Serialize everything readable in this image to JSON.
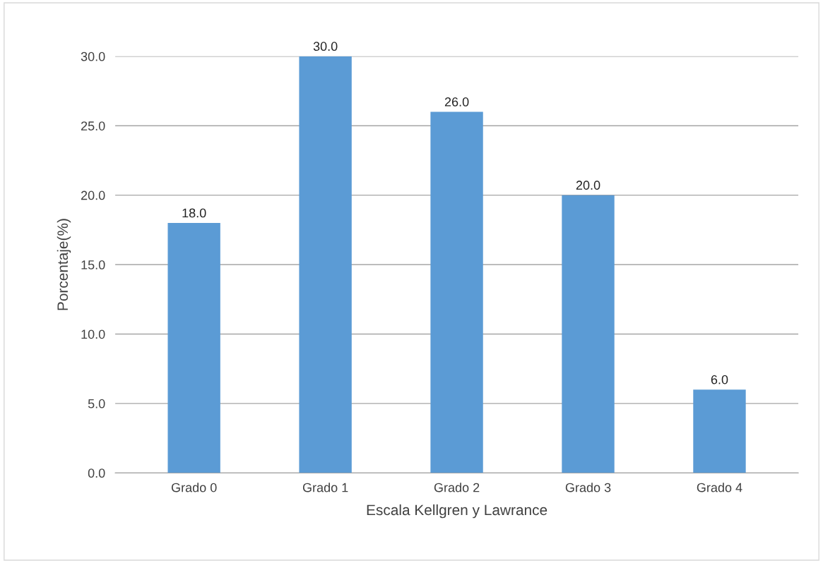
{
  "chart_data": {
    "type": "bar",
    "xlabel": "Escala Kellgren y Lawrance",
    "ylabel": "Porcentaje(%)",
    "categories": [
      "Grado 0",
      "Grado 1",
      "Grado 2",
      "Grado 3",
      "Grado 4"
    ],
    "values": [
      18,
      30,
      26,
      20,
      6
    ],
    "value_labels": [
      "18.0",
      "30.0",
      "26.0",
      "20.0",
      "6.0"
    ],
    "color": "#5b9bd5",
    "ylim": [
      0,
      30
    ],
    "yticks": [
      {
        "value": 0,
        "label": "0.0"
      },
      {
        "value": 5,
        "label": "5.0"
      },
      {
        "value": 10,
        "label": "10.0"
      },
      {
        "value": 15,
        "label": "15.0"
      },
      {
        "value": 20,
        "label": "20.0"
      },
      {
        "value": 25,
        "label": "25.0"
      },
      {
        "value": 30,
        "label": "30.0"
      }
    ],
    "grid": "y"
  }
}
